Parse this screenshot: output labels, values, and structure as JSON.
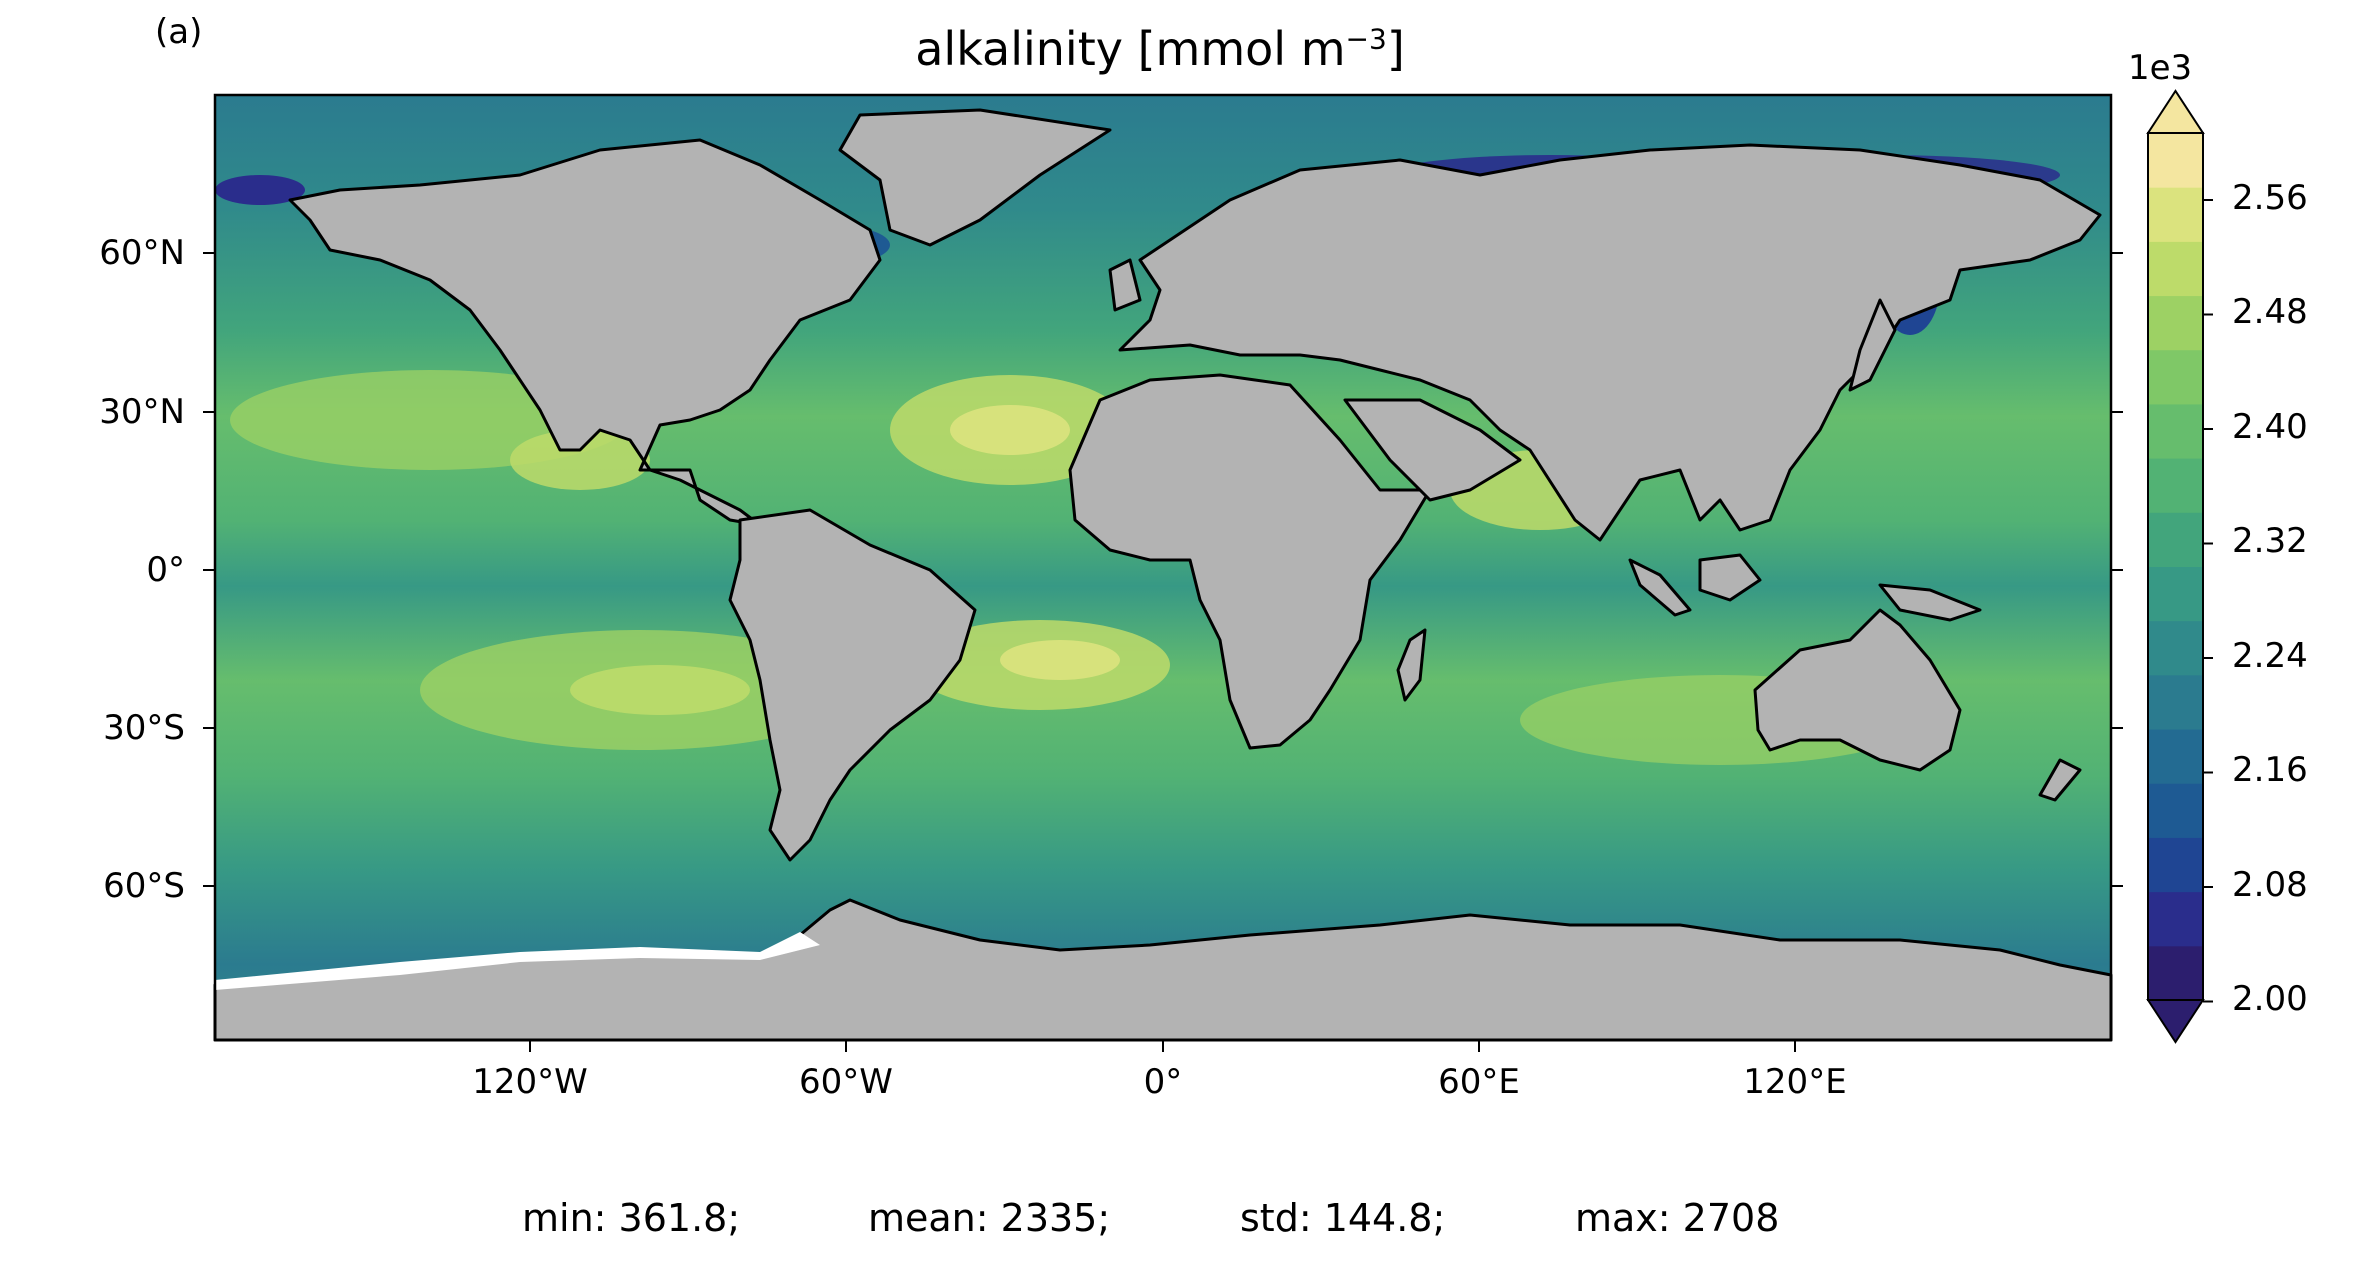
{
  "panel_label": "(a)",
  "title_main": "alkalinity [mmol m",
  "title_sup": "−3",
  "title_end": "]",
  "map": {
    "land_color": "#b3b3b3",
    "ice_color": "#ffffff",
    "coastline_color": "#000000",
    "lat_ticks": [
      "60°N",
      "30°N",
      "0°",
      "30°S",
      "60°S"
    ],
    "lon_ticks": [
      "120°W",
      "60°W",
      "0°",
      "60°E",
      "120°E"
    ]
  },
  "colorbar": {
    "exponent_label": "1e3",
    "tick_labels": [
      "2.56",
      "2.48",
      "2.40",
      "2.32",
      "2.24",
      "2.16",
      "2.08",
      "2.00"
    ],
    "colormap": [
      "#2c1e6e",
      "#2a2d8c",
      "#1f4593",
      "#1e5a93",
      "#236b92",
      "#2b7b8f",
      "#308a8b",
      "#379985",
      "#42a57c",
      "#52b274",
      "#66bd6d",
      "#7fc867",
      "#9dd164",
      "#bddb6a",
      "#dbe37e",
      "#f4e6a0"
    ]
  },
  "stats": {
    "min": "min: 361.8;",
    "mean": "mean: 2335;",
    "std": "std: 144.8;",
    "max": "max: 2708"
  }
}
